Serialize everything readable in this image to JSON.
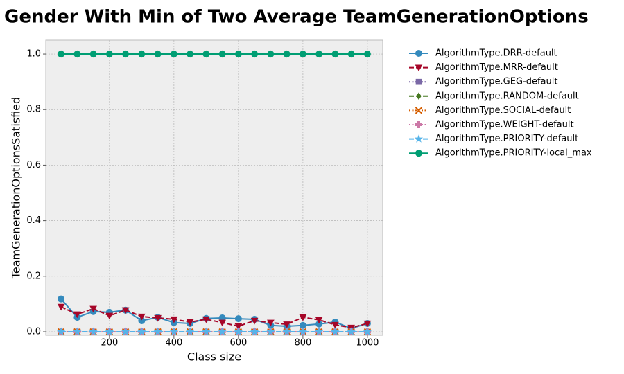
{
  "chart_data": {
    "type": "line",
    "title": "Gender With Min of Two Average TeamGenerationOptions",
    "x_label": "Class size",
    "y_label": "TeamGenerationOptionsSatisfied",
    "x": [
      50,
      100,
      150,
      200,
      250,
      300,
      350,
      400,
      450,
      500,
      550,
      600,
      650,
      700,
      750,
      800,
      850,
      900,
      950,
      1000
    ],
    "xlim": [
      2.5,
      1047.5
    ],
    "xticks": [
      200,
      400,
      600,
      800,
      1000
    ],
    "ylim": [
      -0.0125,
      1.05
    ],
    "yticks": [
      {
        "value": 0,
        "label": "0.0"
      },
      {
        "value": 0.2,
        "label": "0.2"
      },
      {
        "value": 0.4,
        "label": "0.4"
      },
      {
        "value": 0.6,
        "label": "0.6"
      },
      {
        "value": 0.8,
        "label": "0.8"
      },
      {
        "value": 1,
        "label": "1.0"
      }
    ],
    "grid": true,
    "legend": "outside-right",
    "series": [
      {
        "name": "AlgorithmType.DRR-default",
        "color": "#348ABD",
        "marker": "circle",
        "dash": "solid",
        "values": [
          0.118,
          0.052,
          0.073,
          0.07,
          0.078,
          0.04,
          0.052,
          0.033,
          0.03,
          0.048,
          0.05,
          0.047,
          0.045,
          0.023,
          0.02,
          0.023,
          0.028,
          0.035,
          0.012,
          0.03
        ]
      },
      {
        "name": "AlgorithmType.MRR-default",
        "color": "#A60628",
        "marker": "triangle-down",
        "dash": "dashed",
        "values": [
          0.09,
          0.063,
          0.083,
          0.058,
          0.078,
          0.055,
          0.05,
          0.045,
          0.035,
          0.045,
          0.033,
          0.02,
          0.04,
          0.033,
          0.027,
          0.052,
          0.043,
          0.025,
          0.015,
          0.03
        ]
      },
      {
        "name": "AlgorithmType.GEG-default",
        "color": "#7A68A6",
        "marker": "square",
        "dash": "dotted",
        "values": [
          0,
          0,
          0,
          0,
          0,
          0,
          0,
          0,
          0,
          0,
          0,
          0,
          0,
          0,
          0,
          0,
          0,
          0,
          0,
          0
        ]
      },
      {
        "name": "AlgorithmType.RANDOM-default",
        "color": "#467821",
        "marker": "diamond",
        "dash": "dashed",
        "values": [
          1,
          1,
          1,
          1,
          1,
          1,
          1,
          1,
          1,
          1,
          1,
          1,
          1,
          1,
          1,
          1,
          1,
          1,
          1,
          1
        ]
      },
      {
        "name": "AlgorithmType.SOCIAL-default",
        "color": "#D55E00",
        "marker": "x",
        "dash": "dotted",
        "values": [
          0,
          0,
          0,
          0,
          0,
          0,
          0,
          0,
          0,
          0,
          0,
          0,
          0,
          0,
          0,
          0,
          0,
          0,
          0,
          0
        ]
      },
      {
        "name": "AlgorithmType.WEIGHT-default",
        "color": "#CC79A7",
        "marker": "plus",
        "dash": "dotted",
        "values": [
          0,
          0,
          0,
          0,
          0,
          0,
          0,
          0,
          0,
          0,
          0,
          0,
          0,
          0,
          0,
          0,
          0,
          0,
          0,
          0
        ]
      },
      {
        "name": "AlgorithmType.PRIORITY-default",
        "color": "#56B4E9",
        "marker": "star",
        "dash": "dashed",
        "values": [
          0,
          0,
          0,
          0,
          0,
          0,
          0,
          0,
          0,
          0,
          0,
          0,
          0,
          0,
          0,
          0,
          0,
          0,
          0,
          0
        ]
      },
      {
        "name": "AlgorithmType.PRIORITY-local_max",
        "color": "#009E73",
        "marker": "circle",
        "dash": "solid",
        "values": [
          1,
          1,
          1,
          1,
          1,
          1,
          1,
          1,
          1,
          1,
          1,
          1,
          1,
          1,
          1,
          1,
          1,
          1,
          1,
          1
        ]
      }
    ]
  }
}
